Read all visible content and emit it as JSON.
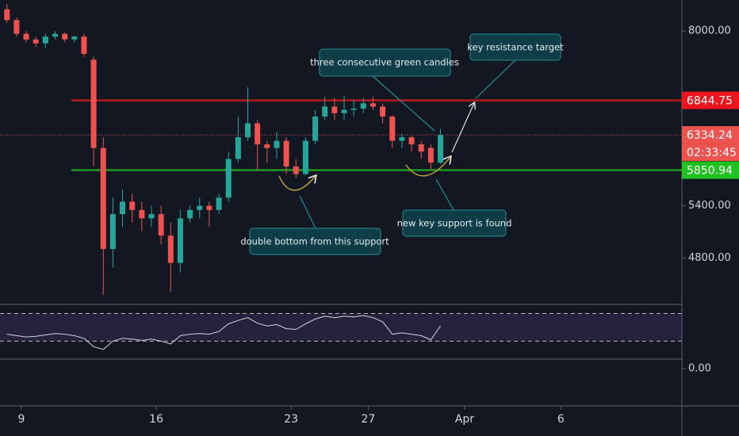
{
  "chart_data": {
    "type": "candlestick",
    "x": [
      8.25,
      8.75,
      9.25,
      9.75,
      10.25,
      10.75,
      11.25,
      11.75,
      12.25,
      12.75,
      13.25,
      13.75,
      14.25,
      14.75,
      15.25,
      15.75,
      16.25,
      16.75,
      17.25,
      17.75,
      18.25,
      18.75,
      19.25,
      19.75,
      20.25,
      20.75,
      21.25,
      21.75,
      22.25,
      22.75,
      23.25,
      23.75,
      24.25,
      24.75,
      25.25,
      25.75,
      26.25,
      26.75,
      27.25,
      27.75,
      28.25,
      28.75,
      29.25,
      29.75,
      30.25,
      30.75
    ],
    "open": [
      8400,
      8200,
      7950,
      7850,
      7780,
      7900,
      7950,
      7850,
      7900,
      7500,
      6150,
      4900,
      5300,
      5450,
      5350,
      5250,
      5300,
      5050,
      4750,
      5250,
      5350,
      5400,
      5350,
      5500,
      6000,
      6300,
      6500,
      6200,
      6150,
      6250,
      5900,
      5800,
      6250,
      6600,
      6750,
      6650,
      6700,
      6720,
      6800,
      6750,
      6600,
      6250,
      6300,
      6200,
      6150,
      5950
    ],
    "high": [
      8500,
      8250,
      8000,
      7900,
      7950,
      8000,
      7980,
      7920,
      7950,
      7550,
      6300,
      5500,
      5600,
      5550,
      5450,
      5400,
      5400,
      5200,
      5350,
      5400,
      5500,
      5450,
      5550,
      6100,
      6600,
      7050,
      6550,
      6250,
      6380,
      6300,
      6000,
      6300,
      6700,
      6900,
      6880,
      6920,
      6850,
      6880,
      6900,
      6800,
      6620,
      6350,
      6320,
      6250,
      6200,
      6420
    ],
    "low": [
      8150,
      7900,
      7800,
      7720,
      7700,
      7850,
      7800,
      7800,
      7550,
      5900,
      4420,
      4700,
      5150,
      5200,
      5100,
      5150,
      4950,
      4450,
      4650,
      5200,
      5250,
      5150,
      5300,
      5450,
      5950,
      6250,
      5850,
      5950,
      6000,
      5800,
      5750,
      5780,
      6200,
      6550,
      6550,
      6550,
      6600,
      6650,
      6700,
      6500,
      6150,
      6150,
      6100,
      6000,
      5850,
      5930
    ],
    "close": [
      8200,
      7950,
      7850,
      7780,
      7900,
      7950,
      7850,
      7900,
      7600,
      6150,
      4900,
      5300,
      5450,
      5350,
      5250,
      5300,
      5050,
      4750,
      5250,
      5350,
      5400,
      5350,
      5500,
      6000,
      6300,
      6500,
      6200,
      6150,
      6250,
      5900,
      5800,
      6250,
      6600,
      6750,
      6650,
      6700,
      6720,
      6800,
      6750,
      6600,
      6250,
      6300,
      6200,
      6100,
      5950,
      6334.24
    ],
    "up_color": "#26a69a",
    "down_color": "#ef5350",
    "log_scale": true,
    "xlim": [
      7.89,
      43.28
    ],
    "xticks": [
      9,
      16,
      23,
      27,
      {
        "value": 32,
        "label": "Apr"
      },
      {
        "value": 37,
        "label": "6"
      }
    ],
    "ylim": [
      4326,
      8578
    ],
    "yticks": [
      {
        "value": 8000,
        "label": "8000.00"
      },
      {
        "value": 5400,
        "label": "5400.00"
      },
      {
        "value": 4800,
        "label": "4800.00"
      }
    ],
    "hlines": [
      {
        "value": 6844.75,
        "color": "#b71c1c",
        "label_color": "#f0141e"
      },
      {
        "value": 5850.94,
        "color": "#1e9a1e",
        "label_color": "#22c122"
      }
    ],
    "last_price": 6334.24,
    "last_price_color": "#ef5350",
    "countdown": "02:33:45",
    "annotations": [
      "three consecutive green candles",
      "key resistance target",
      "double bottom from this support",
      "new key support is found"
    ],
    "rsi": {
      "values": [
        40,
        38,
        36,
        37,
        39,
        41,
        40,
        38,
        34,
        22,
        18,
        30,
        34,
        33,
        31,
        33,
        30,
        26,
        38,
        40,
        41,
        40,
        44,
        55,
        60,
        64,
        56,
        52,
        54,
        48,
        47,
        55,
        62,
        66,
        64,
        66,
        65,
        67,
        64,
        58,
        40,
        42,
        40,
        38,
        32,
        52
      ],
      "ylim": [
        4,
        82
      ],
      "levels": [
        70,
        30
      ],
      "color": "#d1d4dc"
    },
    "lower_pane_yticks": [
      {
        "value": 0,
        "label": "0.00"
      }
    ]
  }
}
